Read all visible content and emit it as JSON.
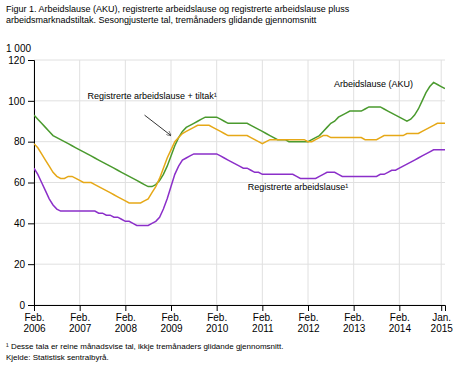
{
  "chart_data": {
    "type": "line",
    "title": "Figur 1. Arbeidslause (AKU), registrerte arbeidslause og registrerte arbeidslause pluss\narbeidsmarknadstiltak. Sesongjusterte tal, tremånaders glidande gjennomsnitt",
    "ylabel": "1 000",
    "categories": [
      "Feb.\n2006",
      null,
      null,
      null,
      null,
      null,
      null,
      null,
      null,
      null,
      null,
      null,
      "Feb.\n2007",
      null,
      null,
      null,
      null,
      null,
      null,
      null,
      null,
      null,
      null,
      null,
      "Feb.\n2008",
      null,
      null,
      null,
      null,
      null,
      null,
      null,
      null,
      null,
      null,
      null,
      "Feb.\n2009",
      null,
      null,
      null,
      null,
      null,
      null,
      null,
      null,
      null,
      null,
      null,
      "Feb.\n2010",
      null,
      null,
      null,
      null,
      null,
      null,
      null,
      null,
      null,
      null,
      null,
      "Feb.\n2011",
      null,
      null,
      null,
      null,
      null,
      null,
      null,
      null,
      null,
      null,
      null,
      "Feb.\n2012",
      null,
      null,
      null,
      null,
      null,
      null,
      null,
      null,
      null,
      null,
      null,
      "Feb.\n2013",
      null,
      null,
      null,
      null,
      null,
      null,
      null,
      null,
      null,
      null,
      null,
      "Feb.\n2014",
      null,
      null,
      null,
      null,
      null,
      null,
      null,
      null,
      null,
      null,
      "Jan.\n2015",
      null
    ],
    "series": [
      {
        "name": "Arbeidslause  (AKU)",
        "color": "#4a9a2e",
        "values": [
          93,
          91,
          89,
          87,
          85,
          83,
          82,
          81,
          80,
          79,
          78,
          77,
          76,
          75,
          74,
          73,
          72,
          71,
          70,
          69,
          68,
          67,
          66,
          65,
          64,
          63,
          62,
          61,
          60,
          59,
          58,
          58,
          59,
          61,
          64,
          68,
          73,
          78,
          82,
          85,
          87,
          88,
          89,
          90,
          91,
          92,
          92,
          92,
          92,
          91,
          90,
          89,
          89,
          89,
          89,
          89,
          89,
          88,
          87,
          86,
          85,
          84,
          83,
          82,
          81,
          81,
          81,
          80,
          80,
          80,
          80,
          80,
          80,
          81,
          82,
          83,
          85,
          87,
          89,
          90,
          92,
          93,
          94,
          95,
          95,
          95,
          95,
          96,
          97,
          97,
          97,
          97,
          96,
          95,
          94,
          93,
          92,
          91,
          90,
          91,
          93,
          96,
          100,
          104,
          107,
          109,
          108,
          107,
          106
        ]
      },
      {
        "name": "Registrerte arbeidslause + tiltak¹",
        "color": "#e6a817",
        "values": [
          79,
          77,
          74,
          71,
          68,
          65,
          63,
          62,
          62,
          63,
          63,
          62,
          61,
          60,
          60,
          60,
          59,
          58,
          57,
          56,
          55,
          54,
          53,
          52,
          51,
          50,
          50,
          50,
          50,
          51,
          52,
          55,
          58,
          62,
          67,
          72,
          76,
          80,
          82,
          84,
          85,
          86,
          87,
          88,
          88,
          88,
          88,
          87,
          86,
          85,
          84,
          83,
          83,
          83,
          83,
          83,
          83,
          82,
          81,
          80,
          79,
          80,
          81,
          81,
          81,
          81,
          81,
          81,
          81,
          81,
          81,
          81,
          80,
          80,
          81,
          82,
          83,
          83,
          82,
          82,
          82,
          82,
          82,
          82,
          82,
          82,
          82,
          81,
          81,
          81,
          81,
          82,
          83,
          83,
          83,
          83,
          83,
          83,
          84,
          84,
          84,
          84,
          85,
          86,
          87,
          88,
          89,
          89,
          89
        ]
      },
      {
        "name": "Registrerte arbeidslause¹",
        "color": "#8b2fc9",
        "values": [
          67,
          64,
          60,
          56,
          52,
          49,
          47,
          46,
          46,
          46,
          46,
          46,
          46,
          46,
          46,
          46,
          46,
          45,
          45,
          44,
          44,
          43,
          43,
          42,
          41,
          41,
          40,
          39,
          39,
          39,
          39,
          40,
          41,
          43,
          47,
          52,
          58,
          64,
          68,
          71,
          72,
          73,
          74,
          74,
          74,
          74,
          74,
          74,
          74,
          73,
          72,
          71,
          70,
          69,
          68,
          67,
          67,
          66,
          65,
          65,
          64,
          64,
          64,
          64,
          64,
          64,
          64,
          64,
          64,
          63,
          62,
          62,
          62,
          62,
          62,
          63,
          64,
          65,
          65,
          65,
          64,
          63,
          63,
          63,
          63,
          63,
          63,
          63,
          63,
          63,
          63,
          64,
          64,
          65,
          66,
          66,
          67,
          68,
          69,
          70,
          71,
          72,
          73,
          74,
          75,
          76,
          76,
          76,
          76
        ]
      }
    ],
    "ylim": [
      0,
      120
    ],
    "yticks": [
      0,
      20,
      40,
      60,
      80,
      100,
      120
    ],
    "grid": true,
    "annotations": [
      "¹ Desse tala er reine månadsvise tal, ikkje tremånaders glidande gjennomsnitt.",
      "Kjelde: Statistisk sentralbyrå."
    ]
  }
}
